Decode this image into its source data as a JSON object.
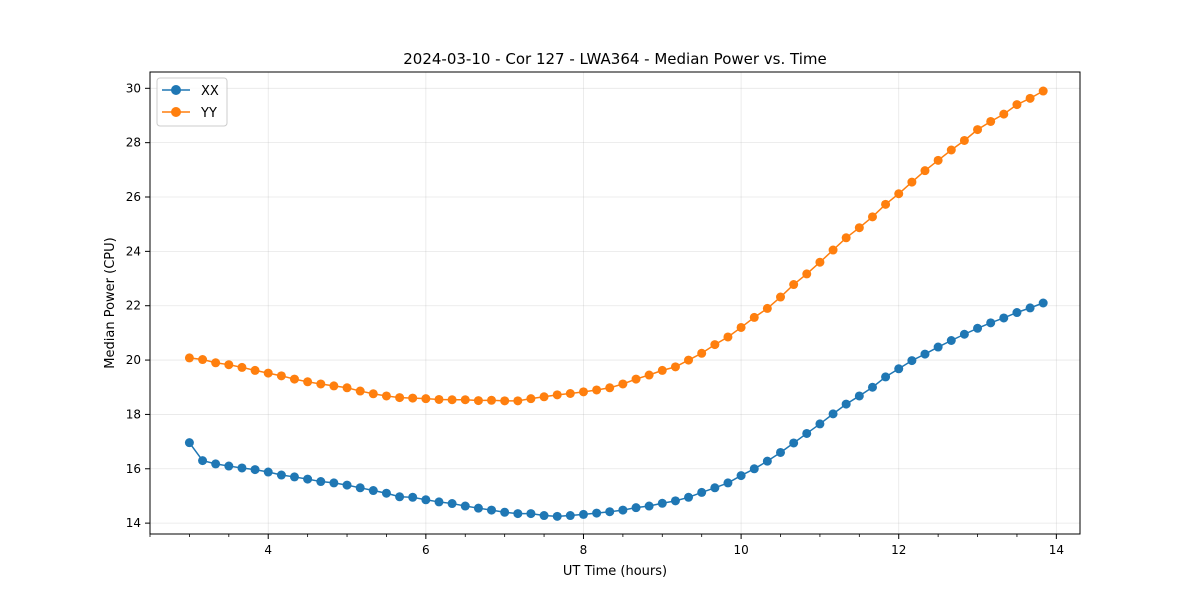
{
  "chart_data": {
    "type": "line",
    "title": "2024-03-10 - Cor 127 - LWA364 - Median Power vs. Time",
    "xlabel": "UT Time (hours)",
    "ylabel": "Median Power (CPU)",
    "xlim": [
      2.5,
      14.3
    ],
    "ylim": [
      13.6,
      30.6
    ],
    "x_ticks": [
      4,
      6,
      8,
      10,
      12,
      14
    ],
    "x_tick_labels": [
      "4",
      "6",
      "8",
      "10",
      "12",
      "14"
    ],
    "y_ticks": [
      14,
      16,
      18,
      20,
      22,
      24,
      26,
      28,
      30
    ],
    "y_tick_labels": [
      "14",
      "16",
      "18",
      "20",
      "22",
      "24",
      "26",
      "28",
      "30"
    ],
    "grid": true,
    "legend_position": "top-left",
    "x": [
      3.0,
      3.167,
      3.333,
      3.5,
      3.667,
      3.833,
      4.0,
      4.167,
      4.333,
      4.5,
      4.667,
      4.833,
      5.0,
      5.167,
      5.333,
      5.5,
      5.667,
      5.833,
      6.0,
      6.167,
      6.333,
      6.5,
      6.667,
      6.833,
      7.0,
      7.167,
      7.333,
      7.5,
      7.667,
      7.833,
      8.0,
      8.167,
      8.333,
      8.5,
      8.667,
      8.833,
      9.0,
      9.167,
      9.333,
      9.5,
      9.667,
      9.833,
      10.0,
      10.167,
      10.333,
      10.5,
      10.667,
      10.833,
      11.0,
      11.167,
      11.333,
      11.5,
      11.667,
      11.833,
      12.0,
      12.167,
      12.333,
      12.5,
      12.667,
      12.833,
      13.0,
      13.167,
      13.333,
      13.5,
      13.667,
      13.833
    ],
    "series": [
      {
        "name": "XX",
        "color": "#1f77b4",
        "values": [
          16.96,
          16.3,
          16.18,
          16.1,
          16.03,
          15.97,
          15.88,
          15.77,
          15.7,
          15.62,
          15.53,
          15.48,
          15.4,
          15.3,
          15.2,
          15.1,
          14.97,
          14.95,
          14.86,
          14.78,
          14.72,
          14.63,
          14.55,
          14.48,
          14.4,
          14.35,
          14.35,
          14.28,
          14.25,
          14.28,
          14.32,
          14.37,
          14.42,
          14.48,
          14.57,
          14.63,
          14.73,
          14.82,
          14.95,
          15.13,
          15.3,
          15.48,
          15.75,
          16.0,
          16.28,
          16.6,
          16.95,
          17.3,
          17.65,
          18.02,
          18.38,
          18.68,
          19.0,
          19.38,
          19.68,
          19.98,
          20.22,
          20.48,
          20.72,
          20.95,
          21.17,
          21.37,
          21.55,
          21.75,
          21.92,
          22.1
        ]
      },
      {
        "name": "YY",
        "color": "#ff7f0e",
        "values": [
          20.08,
          20.02,
          19.9,
          19.83,
          19.73,
          19.62,
          19.52,
          19.42,
          19.3,
          19.2,
          19.12,
          19.05,
          18.98,
          18.86,
          18.76,
          18.68,
          18.62,
          18.6,
          18.58,
          18.55,
          18.54,
          18.54,
          18.51,
          18.52,
          18.5,
          18.5,
          18.58,
          18.65,
          18.72,
          18.77,
          18.83,
          18.9,
          18.98,
          19.12,
          19.3,
          19.45,
          19.62,
          19.75,
          20.0,
          20.25,
          20.57,
          20.85,
          21.2,
          21.57,
          21.9,
          22.32,
          22.78,
          23.17,
          23.6,
          24.05,
          24.5,
          24.87,
          25.27,
          25.73,
          26.12,
          26.55,
          26.97,
          27.35,
          27.73,
          28.08,
          28.48,
          28.78,
          29.05,
          29.4,
          29.63,
          29.9
        ]
      }
    ]
  }
}
